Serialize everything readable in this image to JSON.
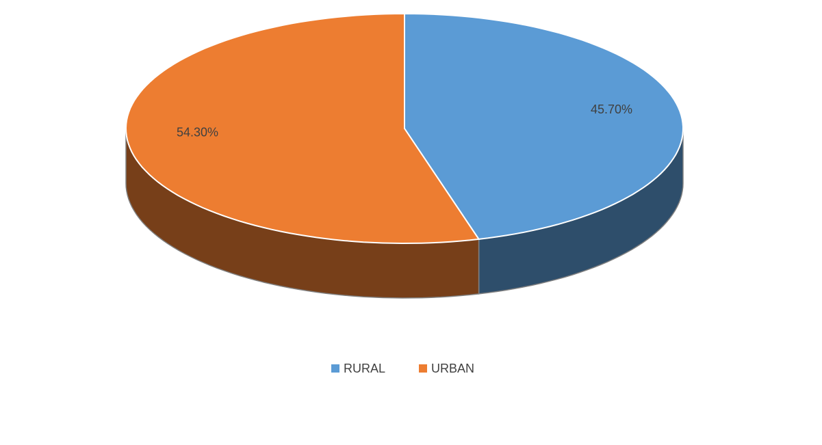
{
  "chart_data": {
    "type": "pie",
    "categories": [
      "RURAL",
      "URBAN"
    ],
    "values": [
      45.7,
      54.3
    ],
    "value_labels": [
      "45.70%",
      "54.30%"
    ],
    "colors": [
      "#5b9bd5",
      "#ed7d31"
    ],
    "legend": "bottom"
  }
}
